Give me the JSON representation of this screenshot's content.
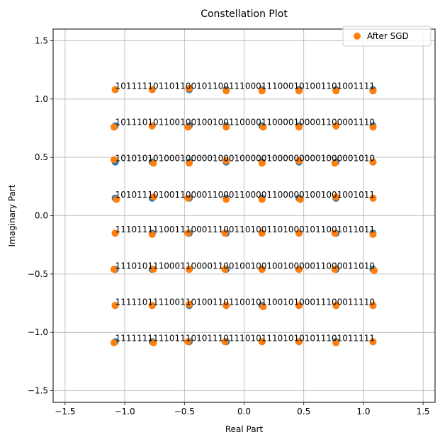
{
  "chart_data": {
    "type": "scatter",
    "title": "Constellation Plot",
    "xlabel": "Real Part",
    "ylabel": "Imaginary Part",
    "xlim": [
      -1.6,
      1.6
    ],
    "ylim": [
      -1.6,
      1.6
    ],
    "xticks": [
      "−1.5",
      "−1.0",
      "−0.5",
      "0.0",
      "0.5",
      "1.0",
      "1.5"
    ],
    "xtick_values": [
      -1.5,
      -1.0,
      -0.5,
      0.0,
      0.5,
      1.0,
      1.5
    ],
    "yticks": [
      "−1.5",
      "−1.0",
      "−0.5",
      "0.0",
      "0.5",
      "1.0",
      "1.5"
    ],
    "ytick_values": [
      -1.5,
      -1.0,
      -0.5,
      0.0,
      0.5,
      1.0,
      1.5
    ],
    "grid": true,
    "legend_position": "top-right",
    "series": [
      {
        "name": "",
        "color": "#1f77b4",
        "x_values": [
          -1.08,
          -0.77,
          -0.46,
          -0.15,
          0.15,
          0.46,
          0.77,
          1.08
        ],
        "y_values": [
          1.08,
          0.77,
          0.46,
          0.15,
          -0.15,
          -0.46,
          -0.77,
          -1.08
        ]
      },
      {
        "name": "After SGD",
        "color": "#ff7f0e",
        "points": [
          [
            -1.08,
            1.08
          ],
          [
            -0.77,
            1.08
          ],
          [
            -0.46,
            1.09
          ],
          [
            -0.15,
            1.07
          ],
          [
            0.15,
            1.07
          ],
          [
            0.46,
            1.07
          ],
          [
            0.77,
            1.07
          ],
          [
            1.08,
            1.07
          ],
          [
            -1.09,
            0.76
          ],
          [
            -0.77,
            0.77
          ],
          [
            -0.47,
            0.76
          ],
          [
            -0.15,
            0.76
          ],
          [
            0.16,
            0.76
          ],
          [
            0.46,
            0.76
          ],
          [
            0.77,
            0.77
          ],
          [
            1.08,
            0.76
          ],
          [
            -1.09,
            0.48
          ],
          [
            -0.76,
            0.45
          ],
          [
            -0.46,
            0.45
          ],
          [
            -0.15,
            0.47
          ],
          [
            0.15,
            0.45
          ],
          [
            0.46,
            0.47
          ],
          [
            0.76,
            0.45
          ],
          [
            1.08,
            0.46
          ],
          [
            -1.07,
            0.14
          ],
          [
            -0.76,
            0.16
          ],
          [
            -0.47,
            0.15
          ],
          [
            -0.15,
            0.14
          ],
          [
            0.15,
            0.14
          ],
          [
            0.47,
            0.14
          ],
          [
            0.77,
            0.16
          ],
          [
            1.08,
            0.15
          ],
          [
            -1.08,
            -0.15
          ],
          [
            -0.77,
            -0.16
          ],
          [
            -0.47,
            -0.15
          ],
          [
            -0.16,
            -0.15
          ],
          [
            0.15,
            -0.15
          ],
          [
            0.46,
            -0.15
          ],
          [
            0.76,
            -0.15
          ],
          [
            1.08,
            -0.16
          ],
          [
            -1.09,
            -0.46
          ],
          [
            -0.76,
            -0.46
          ],
          [
            -0.46,
            -0.46
          ],
          [
            -0.16,
            -0.46
          ],
          [
            0.15,
            -0.46
          ],
          [
            0.46,
            -0.46
          ],
          [
            0.76,
            -0.46
          ],
          [
            1.09,
            -0.47
          ],
          [
            -1.08,
            -0.77
          ],
          [
            -0.77,
            -0.77
          ],
          [
            -0.46,
            -0.76
          ],
          [
            -0.15,
            -0.77
          ],
          [
            0.16,
            -0.78
          ],
          [
            0.46,
            -0.77
          ],
          [
            0.77,
            -0.77
          ],
          [
            1.08,
            -0.77
          ],
          [
            -1.09,
            -1.09
          ],
          [
            -0.76,
            -1.09
          ],
          [
            -0.47,
            -1.08
          ],
          [
            -0.16,
            -1.08
          ],
          [
            0.15,
            -1.08
          ],
          [
            0.46,
            -1.08
          ],
          [
            0.77,
            -1.09
          ],
          [
            1.08,
            -1.08
          ]
        ]
      }
    ],
    "row_labels": [
      "101111101101100101100111000111000101001101001111",
      "101110101100100100100110000110000100001100001110",
      "101010101000100000100010000010000000001000001010",
      "101011101001100001100011000011000001001001001011",
      "111011111001110001110011010011010001011001011011",
      "111010111000110000110010010010010000011000011010",
      "111110111100110100110110010110010100011100011110",
      "111111111101110101110111010111010101011101011111"
    ]
  }
}
